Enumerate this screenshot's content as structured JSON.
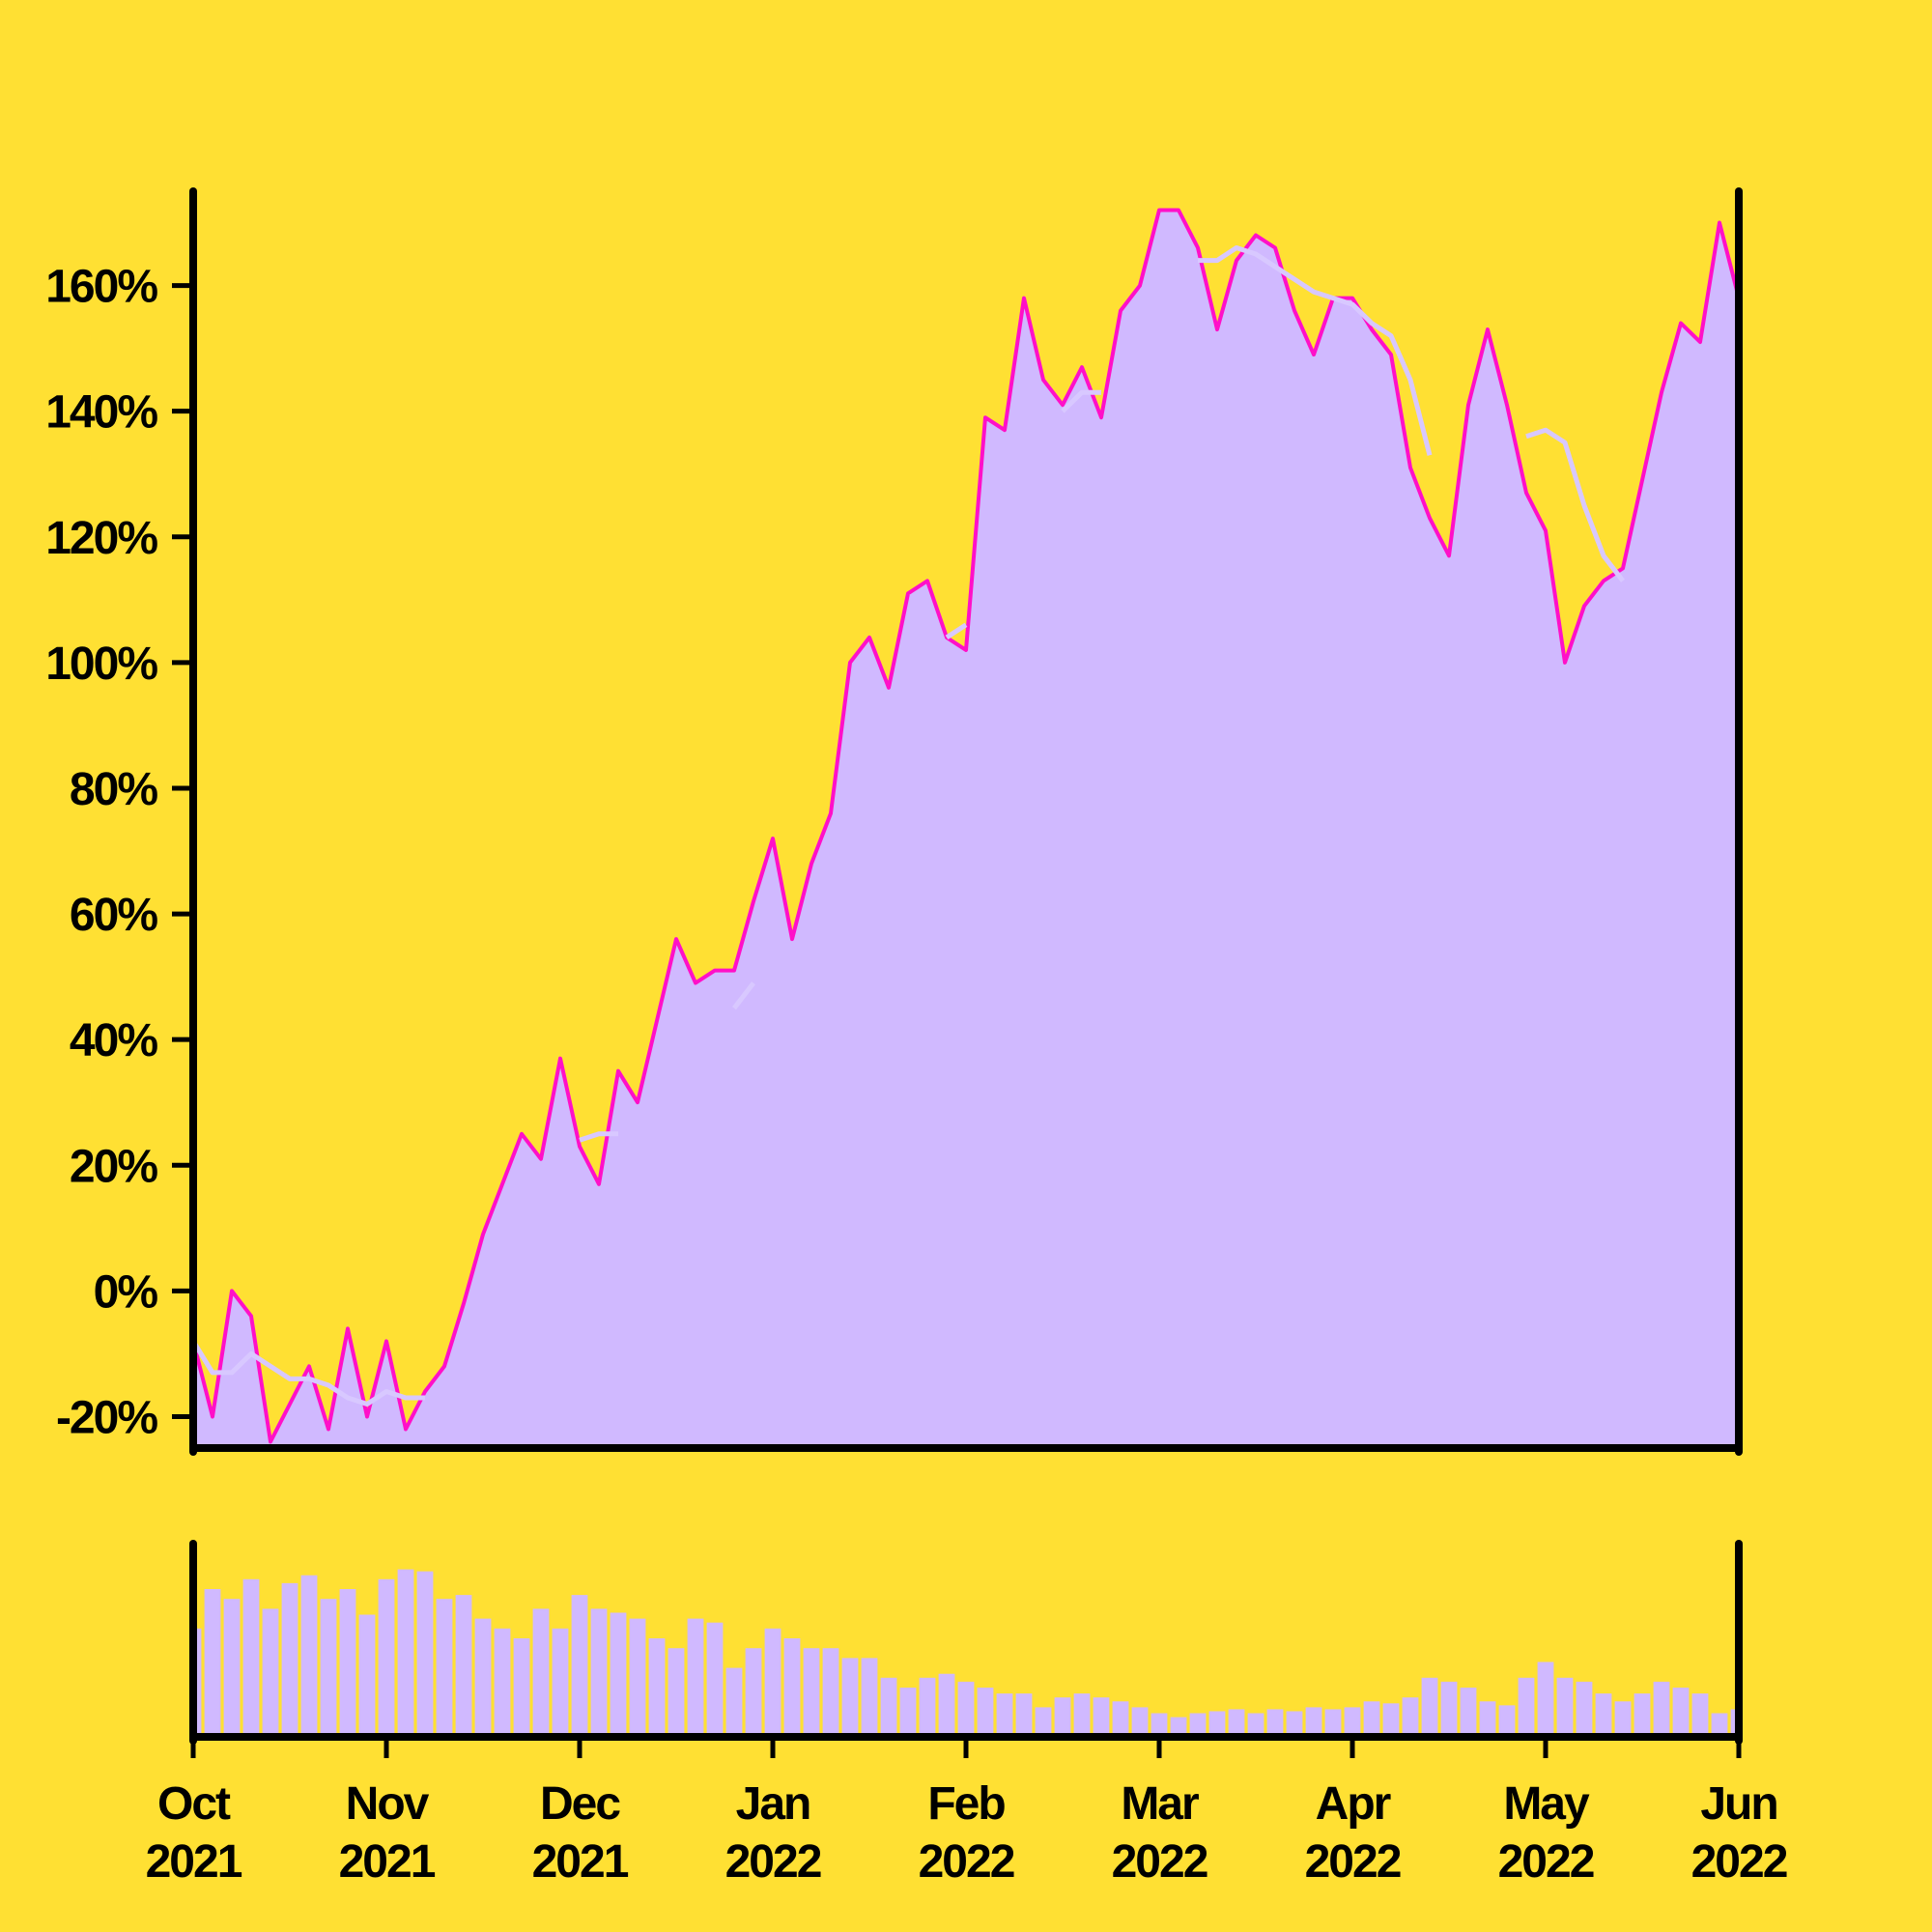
{
  "chart_data": [
    {
      "type": "area",
      "x": [
        0,
        0.1,
        0.2,
        0.3,
        0.4,
        0.5,
        0.6,
        0.7,
        0.8,
        0.9,
        1,
        1.1,
        1.2,
        1.3,
        1.4,
        1.5,
        1.6,
        1.7,
        1.8,
        1.9,
        2,
        2.1,
        2.2,
        2.3,
        2.4,
        2.5,
        2.6,
        2.7,
        2.8,
        2.9,
        3,
        3.1,
        3.2,
        3.3,
        3.4,
        3.5,
        3.6,
        3.7,
        3.8,
        3.9,
        4,
        4.1,
        4.2,
        4.3,
        4.4,
        4.5,
        4.6,
        4.7,
        4.8,
        4.9,
        5,
        5.1,
        5.2,
        5.3,
        5.4,
        5.5,
        5.6,
        5.7,
        5.8,
        5.9,
        6,
        6.1,
        6.2,
        6.3,
        6.4,
        6.5,
        6.6,
        6.7,
        6.8,
        6.9,
        7,
        7.1,
        7.2,
        7.3,
        7.4,
        7.5,
        7.6,
        7.7,
        7.8,
        7.9,
        8
      ],
      "xlim": [
        0,
        8
      ],
      "ylim": [
        -25,
        175
      ],
      "yticks": [
        {
          "value": -20,
          "label": "-20%"
        },
        {
          "value": 0,
          "label": "0%"
        },
        {
          "value": 20,
          "label": "20%"
        },
        {
          "value": 40,
          "label": "40%"
        },
        {
          "value": 60,
          "label": "60%"
        },
        {
          "value": 80,
          "label": "80%"
        },
        {
          "value": 100,
          "label": "100%"
        },
        {
          "value": 120,
          "label": "120%"
        },
        {
          "value": 140,
          "label": "140%"
        },
        {
          "value": 160,
          "label": "160%"
        }
      ],
      "series": [
        {
          "color": "#ff10c8",
          "fill_color": "#d0b9ff",
          "values": [
            -8,
            -20,
            0,
            -4,
            -24,
            -18,
            -12,
            -22,
            -6,
            -20,
            -8,
            -22,
            -16,
            -12,
            -2,
            9,
            17,
            25,
            21,
            37,
            23,
            17,
            35,
            30,
            43,
            56,
            49,
            51,
            51,
            62,
            72,
            56,
            68,
            76,
            100,
            104,
            96,
            111,
            113,
            104,
            102,
            139,
            137,
            158,
            145,
            141,
            147,
            139,
            156,
            160,
            172,
            172,
            166,
            153,
            164,
            168,
            166,
            156,
            149,
            158,
            158,
            153,
            149,
            131,
            123,
            117,
            141,
            153,
            141,
            127,
            121,
            100,
            109,
            113,
            115,
            129,
            143,
            154,
            151,
            170,
            158
          ]
        },
        {
          "color": "#d8c8ff",
          "values": [
            -8,
            -13,
            -13,
            -10,
            -12,
            -14,
            -14,
            -15,
            -17,
            -18,
            -16,
            -17,
            -17,
            null,
            null,
            null,
            null,
            null,
            null,
            null,
            24,
            25,
            25,
            null,
            null,
            null,
            null,
            null,
            45,
            49,
            null,
            null,
            56,
            null,
            null,
            null,
            null,
            null,
            null,
            104,
            106,
            null,
            null,
            null,
            null,
            140,
            143,
            143,
            null,
            null,
            null,
            null,
            164,
            164,
            166,
            165,
            163,
            161,
            159,
            158,
            157,
            154,
            152,
            145,
            133,
            null,
            null,
            null,
            null,
            136,
            137,
            135,
            125,
            117,
            113,
            null,
            null,
            null,
            null,
            null,
            null
          ]
        }
      ]
    },
    {
      "type": "bar",
      "x": [
        0,
        0.1,
        0.2,
        0.3,
        0.4,
        0.5,
        0.6,
        0.7,
        0.8,
        0.9,
        1,
        1.1,
        1.2,
        1.3,
        1.4,
        1.5,
        1.6,
        1.7,
        1.8,
        1.9,
        2,
        2.1,
        2.2,
        2.3,
        2.4,
        2.5,
        2.6,
        2.7,
        2.8,
        2.9,
        3,
        3.1,
        3.2,
        3.3,
        3.4,
        3.5,
        3.6,
        3.7,
        3.8,
        3.9,
        4,
        4.1,
        4.2,
        4.3,
        4.4,
        4.5,
        4.6,
        4.7,
        4.8,
        4.9,
        5,
        5.1,
        5.2,
        5.3,
        5.4,
        5.5,
        5.6,
        5.7,
        5.8,
        5.9,
        6,
        6.1,
        6.2,
        6.3,
        6.4,
        6.5,
        6.6,
        6.7,
        6.8,
        6.9,
        7,
        7.1,
        7.2,
        7.3,
        7.4,
        7.5,
        7.6,
        7.7,
        7.8,
        7.9,
        8
      ],
      "xlim": [
        0,
        8
      ],
      "xticks": [
        {
          "value": 0,
          "label": "Oct 2021"
        },
        {
          "value": 1,
          "label": "Nov 2021"
        },
        {
          "value": 2,
          "label": "Dec 2021"
        },
        {
          "value": 3,
          "label": "Jan 2022"
        },
        {
          "value": 4,
          "label": "Feb 2022"
        },
        {
          "value": 5,
          "label": "Mar 2022"
        },
        {
          "value": 6,
          "label": "Apr 2022"
        },
        {
          "value": 7,
          "label": "May 2022"
        },
        {
          "value": 8,
          "label": "Jun 2022"
        }
      ],
      "ylim": [
        0,
        100
      ],
      "color": "#d0b9ff",
      "values": [
        55,
        75,
        70,
        80,
        65,
        78,
        82,
        70,
        75,
        62,
        80,
        85,
        84,
        70,
        72,
        60,
        55,
        50,
        65,
        55,
        72,
        65,
        63,
        60,
        50,
        45,
        60,
        58,
        35,
        45,
        55,
        50,
        45,
        45,
        40,
        40,
        30,
        25,
        30,
        32,
        28,
        25,
        22,
        22,
        15,
        20,
        22,
        20,
        18,
        15,
        12,
        10,
        12,
        13,
        14,
        12,
        14,
        13,
        15,
        14,
        15,
        18,
        17,
        20,
        30,
        28,
        25,
        18,
        16,
        30,
        38,
        30,
        28,
        22,
        18,
        22,
        28,
        25,
        22,
        12,
        14
      ]
    }
  ]
}
